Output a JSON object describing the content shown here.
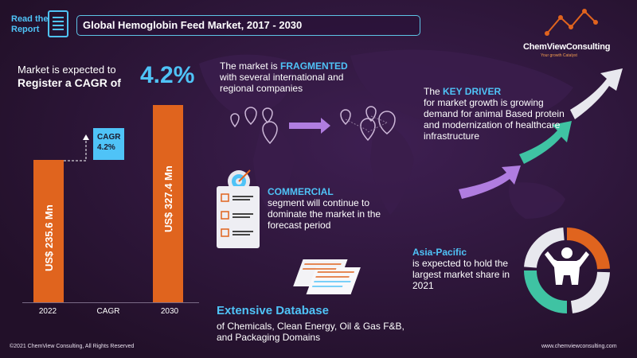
{
  "header": {
    "read_line1": "Read the",
    "read_line2": "Report",
    "title": "Global Hemoglobin Feed Market, 2017  - 2030"
  },
  "logo": {
    "name": "ChemViewConsulting",
    "tagline": "Your growth Catalyst"
  },
  "cagr_section": {
    "lead_line1": "Market is expected to",
    "lead_line2": "Register a CAGR of",
    "value": "4.2%",
    "box_label": "CAGR",
    "box_value": "4.2%"
  },
  "chart_data": {
    "type": "bar",
    "categories": [
      "2022",
      "CAGR",
      "2030"
    ],
    "values": [
      235.6,
      null,
      327.4
    ],
    "value_labels": [
      "US$ 235.6 Mn",
      "",
      "US$ 327.4 Mn"
    ],
    "ylim": [
      0,
      340
    ],
    "bar_color": "#e0641e"
  },
  "fragmented": {
    "pre": "The market is ",
    "highlight": "FRAGMENTED",
    "rest": "with several international and regional companies"
  },
  "commercial": {
    "highlight": "COMMERCIAL",
    "rest": "segment will continue to dominate the market in the forecast period"
  },
  "driver": {
    "pre": "The ",
    "highlight": "KEY DRIVER",
    "rest": "for market growth is growing demand for animal Based protein and modernization of healthcare infrastructure"
  },
  "region": {
    "highlight": "Asia-Pacific",
    "rest": "is expected to hold the largest market share in 2021"
  },
  "database": {
    "title": "Extensive Database",
    "sub": "of Chemicals, Clean Energy, Oil & Gas F&B, and Packaging Domains"
  },
  "footer": {
    "copyright": "©2021  ChemView  Consulting,  All Rights Reserved",
    "website": "www.chemviewconsulting.com"
  },
  "colors": {
    "accent_blue": "#4fc3f7",
    "accent_orange": "#e0641e",
    "background": "#2a1436",
    "arrow_purple": "#b07de0",
    "arrow_green": "#3fc3a3"
  }
}
